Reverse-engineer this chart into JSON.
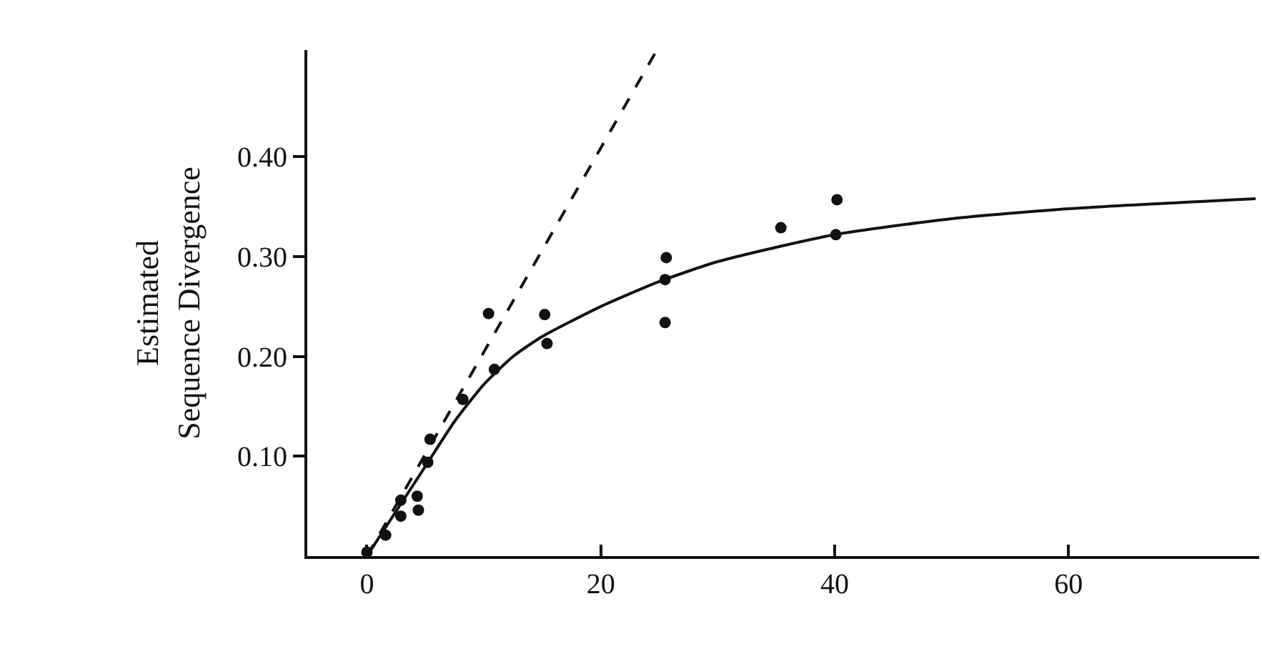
{
  "chart_data": {
    "type": "scatter",
    "ylabel": "Estimated\nSequence Divergence",
    "xlim": [
      -5.1,
      76.3
    ],
    "ylim": [
      0,
      0.507
    ],
    "xticks": [
      0,
      20,
      40,
      60
    ],
    "yticks": [
      {
        "value": 0.1,
        "label": "0.10"
      },
      {
        "value": 0.2,
        "label": "0.20"
      },
      {
        "value": 0.3,
        "label": "0.30"
      },
      {
        "value": 0.4,
        "label": "0.40"
      }
    ],
    "series": [
      {
        "marker": "circle",
        "color": "#111111",
        "x": [
          0,
          1.6,
          2.9,
          2.9,
          4.3,
          4.4,
          5.2,
          5.4,
          8.2,
          10.4,
          10.9,
          15.2,
          15.4,
          25.5,
          25.5,
          25.6,
          35.4,
          40.1,
          40.2
        ],
        "values": [
          0.004,
          0.021,
          0.056,
          0.04,
          0.06,
          0.046,
          0.094,
          0.117,
          0.157,
          0.243,
          0.187,
          0.242,
          0.213,
          0.234,
          0.277,
          0.299,
          0.329,
          0.322,
          0.357
        ]
      },
      {
        "type": "line",
        "line_style": "dashed",
        "color": "#111111",
        "x": [
          0,
          24.7
        ],
        "values": [
          0,
          0.505
        ]
      },
      {
        "type": "line",
        "line_style": "solid",
        "color": "#111111",
        "x": [
          0,
          2.5,
          5,
          7.5,
          10,
          12.5,
          15,
          20,
          25,
          30,
          40,
          50,
          60,
          76
        ],
        "values": [
          0,
          0.045,
          0.09,
          0.135,
          0.172,
          0.2,
          0.22,
          0.25,
          0.275,
          0.295,
          0.322,
          0.338,
          0.348,
          0.358
        ]
      }
    ]
  }
}
